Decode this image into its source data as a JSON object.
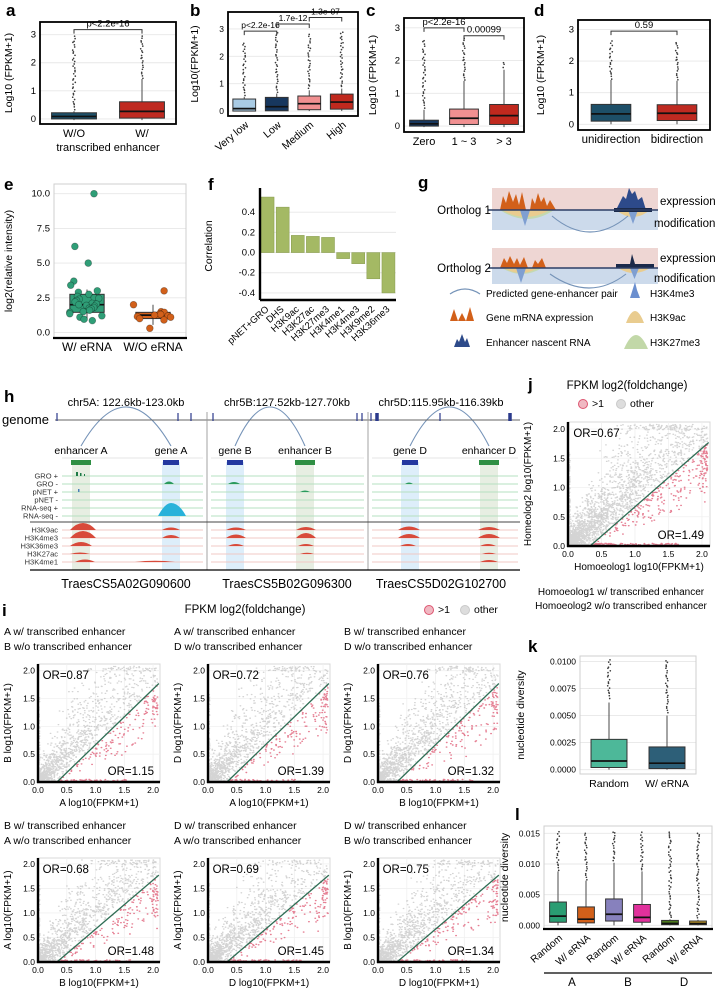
{
  "panels": {
    "a": {
      "label": "a"
    },
    "b": {
      "label": "b"
    },
    "c": {
      "label": "c"
    },
    "d": {
      "label": "d"
    },
    "e": {
      "label": "e"
    },
    "f": {
      "label": "f"
    },
    "g": {
      "label": "g",
      "rows": [
        {
          "name": "Ortholog 1",
          "right_top": "expression",
          "right_bottom": "modification"
        },
        {
          "name": "Ortholog 2",
          "right_top": "expression",
          "right_bottom": "modification"
        }
      ],
      "legend_left": [
        "Predicted gene-enhancer pair",
        "Gene mRNA expression",
        "Enhancer nascent RNA"
      ],
      "legend_right": [
        "H3K4me3",
        "H3K9ac",
        "H3K27me3"
      ],
      "colors": {
        "band_exp": "#eed6d3",
        "band_mod": "#ccdaeb",
        "mrna": "#d2601a",
        "nascent": "#2d4a8a",
        "h3k4me3": "#7f9fd1",
        "h3k9ac": "#e9cc8f",
        "h3k27me3": "#c2d8a8",
        "arc": "#7593b8"
      }
    },
    "h": {
      "label": "h",
      "genome_label": "genome",
      "regions": [
        {
          "title": "chr5A: 122.6kb-123.0kb",
          "gene_id": "TraesCS5A02G090600",
          "features": [
            "enhancer A",
            "gene A"
          ]
        },
        {
          "title": "chr5B:127.52kb-127.70kb",
          "gene_id": "TraesCS5B02G096300",
          "features": [
            "gene B",
            "enhancer B"
          ]
        },
        {
          "title": "chr5D:115.95kb-116.39kb",
          "gene_id": "TraesCS5D02G102700",
          "features": [
            "gene D",
            "enhancer D"
          ]
        }
      ],
      "nascent_tracks": [
        "GRO +",
        "GRO -",
        "pNET +",
        "pNET -",
        "RNA-seq +",
        "RNA-seq -"
      ],
      "chip_tracks": [
        "H3K9ac",
        "H3K4me3",
        "H3K36me3",
        "H3K27ac",
        "H3K4me1"
      ],
      "colors": {
        "enhancer": "#2f8f44",
        "gene": "#2438a0",
        "tick": "#2b3a8c",
        "nascent_line": "#b5e0c0",
        "chip_line": "#f0c8c4",
        "peak_green": "#1e7a46",
        "peak_cyan": "#29b2da",
        "peak_red": "#d84a3a",
        "hl_enh": "#e7eee2",
        "hl_gene": "#ddeefa"
      }
    },
    "i": {
      "label": "i",
      "header": "FPKM log2(foldchange)",
      "legend": [
        {
          "label": ">1",
          "color": "#dd5570"
        },
        {
          "label": "other",
          "color": "#c9c9c9"
        }
      ]
    },
    "j": {
      "label": "j",
      "header": "FPKM log2(foldchange)",
      "legend": [
        {
          "label": ">1",
          "color": "#dd5570"
        },
        {
          "label": "other",
          "color": "#c9c9c9"
        }
      ],
      "notes": [
        "Homoeolog1 w/ transcribed enhancer",
        "Homoeolog2 w/o transcribed enhancer"
      ]
    },
    "k": {
      "label": "k"
    },
    "l": {
      "label": "l"
    }
  },
  "chart_data": [
    {
      "id": "a",
      "el": "host-a",
      "type": "box",
      "title": "",
      "ylabel": "Log10 (FPKM+1)",
      "ylim": [
        -0.18,
        3.45
      ],
      "yticks": [
        0,
        1,
        2,
        3
      ],
      "ylabels": [
        "0",
        "1",
        "2",
        "3"
      ],
      "categories": [
        "W/O",
        "W/"
      ],
      "xlabel": "transcribed enhancer",
      "brackets": [
        {
          "from": 0,
          "to": 1,
          "y": 3.18,
          "label": "p<2.2e-16"
        }
      ],
      "boxes": [
        {
          "color": "#1d4f68",
          "wlo": -0.04,
          "q1": 0.0,
          "med": 0.09,
          "q3": 0.22,
          "whi": 0.28,
          "out": [
            0.34,
            2.92
          ]
        },
        {
          "color": "#bf2a21",
          "wlo": -0.04,
          "q1": 0.03,
          "med": 0.27,
          "q3": 0.61,
          "whi": 1.42,
          "out": [
            1.46,
            2.95
          ]
        }
      ]
    },
    {
      "id": "b",
      "el": "host-b",
      "type": "box",
      "ylabel": "Log10(FPKM+1)",
      "ylim": [
        -0.18,
        3.62
      ],
      "yticks": [
        0,
        1,
        2,
        3
      ],
      "ylabels": [
        "0",
        "1",
        "2",
        "3"
      ],
      "categories": [
        "Very low",
        "Low",
        "Medium",
        "High"
      ],
      "brackets": [
        {
          "from": 0,
          "to": 1,
          "y": 2.92,
          "label": "p<2.2e-16"
        },
        {
          "from": 1,
          "to": 2,
          "y": 3.18,
          "label": "1.7e-12"
        },
        {
          "from": 2,
          "to": 3,
          "y": 3.42,
          "label": "1.3e-07"
        }
      ],
      "boxes": [
        {
          "color": "#a9cbe4",
          "wlo": 0,
          "q1": 0.0,
          "med": 0.09,
          "q3": 0.44,
          "whi": 0.52,
          "out": [
            0.58,
            2.5
          ]
        },
        {
          "color": "#17375e",
          "wlo": 0,
          "q1": 0.01,
          "med": 0.16,
          "q3": 0.5,
          "whi": 0.64,
          "out": [
            0.7,
            2.85
          ]
        },
        {
          "color": "#f19091",
          "wlo": 0,
          "q1": 0.05,
          "med": 0.27,
          "q3": 0.55,
          "whi": 0.76,
          "out": [
            0.82,
            2.8
          ]
        },
        {
          "color": "#c0291e",
          "wlo": 0,
          "q1": 0.07,
          "med": 0.33,
          "q3": 0.62,
          "whi": 0.82,
          "out": [
            0.88,
            2.9
          ]
        }
      ]
    },
    {
      "id": "c",
      "el": "host-c",
      "type": "box",
      "ylabel": "Log10 (FPKM+1)",
      "ylim": [
        -0.18,
        3.3
      ],
      "yticks": [
        0,
        1,
        2,
        3
      ],
      "ylabels": [
        "0",
        "1",
        "2",
        "3"
      ],
      "categories": [
        "Zero",
        "1 ~ 3",
        "> 3"
      ],
      "brackets": [
        {
          "from": 0,
          "to": 1,
          "y": 3.0,
          "label": "p<2.2e-16"
        },
        {
          "from": 1,
          "to": 2,
          "y": 2.76,
          "label": "0.00099"
        }
      ],
      "boxes": [
        {
          "color": "#17375e",
          "wlo": -0.03,
          "q1": 0.0,
          "med": 0.07,
          "q3": 0.18,
          "whi": 0.5,
          "out": [
            0.56,
            2.62
          ]
        },
        {
          "color": "#f19091",
          "wlo": -0.03,
          "q1": 0.05,
          "med": 0.24,
          "q3": 0.52,
          "whi": 1.38,
          "out": [
            1.42,
            2.68
          ]
        },
        {
          "color": "#c0291e",
          "wlo": -0.03,
          "q1": 0.05,
          "med": 0.32,
          "q3": 0.66,
          "whi": 1.72,
          "out": [
            1.78,
            1.95
          ]
        }
      ]
    },
    {
      "id": "d",
      "el": "host-d",
      "type": "box",
      "ylabel": "Log10 (FPKM+1)",
      "ylim": [
        -0.18,
        3.3
      ],
      "yticks": [
        0,
        1,
        2,
        3
      ],
      "ylabels": [
        "0",
        "1",
        "2",
        "3"
      ],
      "categories": [
        "unidirection",
        "bidirection"
      ],
      "brackets": [
        {
          "from": 0,
          "to": 1,
          "y": 2.95,
          "label": "0.59"
        }
      ],
      "boxes": [
        {
          "color": "#1d4f68",
          "wlo": 0,
          "q1": 0.1,
          "med": 0.33,
          "q3": 0.63,
          "whi": 1.4,
          "out": [
            1.44,
            2.62
          ]
        },
        {
          "color": "#bf2a21",
          "wlo": 0,
          "q1": 0.12,
          "med": 0.35,
          "q3": 0.62,
          "whi": 1.38,
          "out": [
            1.42,
            2.6
          ]
        }
      ]
    },
    {
      "id": "e",
      "el": "host-e",
      "type": "box",
      "ylabel": "log2(relative intensity)",
      "ylim": [
        -0.4,
        10.7
      ],
      "yticks": [
        0,
        2.5,
        5,
        7.5,
        10
      ],
      "ylabels": [
        "0.0",
        "2.5",
        "5.0",
        "7.5",
        "10.0"
      ],
      "categories": [
        "W/ eRNA",
        "W/O eRNA"
      ],
      "boxes": [
        {
          "color": "#2f9e77",
          "wlo": 0.85,
          "q1": 1.45,
          "med": 2.0,
          "q3": 2.75,
          "whi": 3.1,
          "pts": [
            10,
            6.2,
            5,
            3.7,
            3.4,
            3.0,
            2.9,
            2.75,
            2.6,
            2.5,
            2.45,
            2.4,
            2.3,
            2.2,
            2.1,
            2.05,
            2.0,
            1.95,
            1.9,
            1.8,
            1.75,
            1.7,
            1.6,
            1.5,
            1.45,
            1.35,
            1.2,
            1.1,
            0.95,
            0.85
          ]
        },
        {
          "color": "#d2601a",
          "wlo": 0.55,
          "q1": 1.0,
          "med": 1.25,
          "q3": 1.45,
          "whi": 2.0,
          "pts": [
            3.0,
            2.0,
            1.5,
            1.45,
            1.35,
            1.3,
            1.25,
            1.2,
            1.15,
            1.1,
            1.0,
            0.9,
            0.3
          ]
        }
      ]
    },
    {
      "id": "f",
      "el": "host-f",
      "type": "bar",
      "color": "#a4b964",
      "ylabel": "Correlation",
      "ylim": [
        -0.47,
        0.6
      ],
      "yticks": [
        -0.4,
        -0.2,
        0,
        0.2,
        0.4
      ],
      "ylabels": [
        "-0.4",
        "-0.2",
        "0.0",
        "0.2",
        "0.4"
      ],
      "categories": [
        "pNET+GRO",
        "DHS",
        "H3K9ac",
        "H3K27ac",
        "H3K27me3",
        "H3K4me1",
        "H3K4me3",
        "H3K9me2",
        "H3K36me3"
      ],
      "values": [
        0.55,
        0.45,
        0.17,
        0.16,
        0.15,
        -0.06,
        -0.11,
        -0.26,
        -0.4
      ]
    },
    {
      "id": "i1",
      "el": "host-i1",
      "type": "scatter",
      "seed": 11,
      "n": 1400,
      "subtitle": [
        "A w/ transcribed enhancer",
        "B w/o transcribed enhancer"
      ],
      "or_top": "OR=0.87",
      "or_bottom": "OR=1.15",
      "xlabel": "A log10(FPKM+1)",
      "ylabel": "B log10(FPKM+1)",
      "ticks": [
        0,
        0.5,
        1,
        1.5,
        2
      ],
      "tlabels": [
        "0.0",
        "0.5",
        "1.0",
        "1.5",
        "2.0"
      ],
      "line": 0.33
    },
    {
      "id": "i2",
      "el": "host-i2",
      "type": "scatter",
      "seed": 23,
      "n": 1400,
      "subtitle": [
        "A w/ transcribed enhancer",
        "D w/o transcribed enhancer"
      ],
      "or_top": "OR=0.72",
      "or_bottom": "OR=1.39",
      "xlabel": "A log10(FPKM+1)",
      "ylabel": "D log10(FPKM+1)",
      "ticks": [
        0,
        0.5,
        1,
        1.5,
        2
      ],
      "tlabels": [
        "0.0",
        "0.5",
        "1.0",
        "1.5",
        "2.0"
      ],
      "line": 0.33
    },
    {
      "id": "i3",
      "el": "host-i3",
      "type": "scatter",
      "seed": 37,
      "n": 1400,
      "subtitle": [
        "B w/ transcribed enhancer",
        "D w/o transcribed enhancer"
      ],
      "or_top": "OR=0.76",
      "or_bottom": "OR=1.32",
      "xlabel": "B log10(FPKM+1)",
      "ylabel": "D log10(FPKM+1)",
      "ticks": [
        0,
        0.5,
        1,
        1.5,
        2
      ],
      "tlabels": [
        "0.0",
        "0.5",
        "1.0",
        "1.5",
        "2.0"
      ],
      "line": 0.33
    },
    {
      "id": "i4",
      "el": "host-i4",
      "type": "scatter",
      "seed": 51,
      "n": 1400,
      "subtitle": [
        "B w/ transcribed enhancer",
        "A w/o transcribed enhancer"
      ],
      "or_top": "OR=0.68",
      "or_bottom": "OR=1.48",
      "xlabel": "B log10(FPKM+1)",
      "ylabel": "A log10(FPKM+1)",
      "ticks": [
        0,
        0.5,
        1,
        1.5,
        2
      ],
      "tlabels": [
        "0.0",
        "0.5",
        "1.0",
        "1.5",
        "2.0"
      ],
      "line": 0.33
    },
    {
      "id": "i5",
      "el": "host-i5",
      "type": "scatter",
      "seed": 67,
      "n": 1400,
      "subtitle": [
        "D w/ transcribed enhancer",
        "A w/o transcribed enhancer"
      ],
      "or_top": "OR=0.69",
      "or_bottom": "OR=1.45",
      "xlabel": "D log10(FPKM+1)",
      "ylabel": "A log10(FPKM+1)",
      "ticks": [
        0,
        0.5,
        1,
        1.5,
        2
      ],
      "tlabels": [
        "0.0",
        "0.5",
        "1.0",
        "1.5",
        "2.0"
      ],
      "line": 0.33
    },
    {
      "id": "i6",
      "el": "host-i6",
      "type": "scatter",
      "seed": 83,
      "n": 1400,
      "subtitle": [
        "D w/ transcribed enhancer",
        "B w/o transcribed enhancer"
      ],
      "or_top": "OR=0.75",
      "or_bottom": "OR=1.34",
      "xlabel": "D log10(FPKM+1)",
      "ylabel": "B log10(FPKM+1)",
      "ticks": [
        0,
        0.5,
        1,
        1.5,
        2
      ],
      "tlabels": [
        "0.0",
        "0.5",
        "1.0",
        "1.5",
        "2.0"
      ],
      "line": 0.33
    },
    {
      "id": "j",
      "el": "host-j",
      "type": "scatter",
      "seed": 99,
      "n": 2600,
      "or_top": "OR=0.67",
      "or_bottom": "OR=1.49",
      "xlabel": "Homoeolog1 log10(FPKM+1)",
      "ylabel": "Homeolog2 log10(FPKM+1)",
      "ticks": [
        0,
        0.5,
        1,
        1.5,
        2
      ],
      "tlabels": [
        "0.0",
        "0.5",
        "1.0",
        "1.5",
        "2.0"
      ],
      "line": 0.33
    },
    {
      "id": "k",
      "el": "host-k",
      "type": "box",
      "ylabel": "nucleotide diversity",
      "ylim": [
        -0.0004,
        0.0105
      ],
      "yticks": [
        0,
        0.0025,
        0.005,
        0.0075,
        0.01
      ],
      "ylabels": [
        "0.0000",
        "0.0025",
        "0.0050",
        "0.0075",
        "0.0100"
      ],
      "categories": [
        "Random",
        "W/ eRNA"
      ],
      "boxes": [
        {
          "color": "#4db899",
          "wlo": 0,
          "q1": 0.0002,
          "med": 0.0008,
          "q3": 0.0028,
          "whi": 0.0062,
          "out": [
            0.0066,
            0.0101
          ]
        },
        {
          "color": "#2d5f78",
          "wlo": 0,
          "q1": 0.0001,
          "med": 0.0006,
          "q3": 0.0021,
          "whi": 0.005,
          "out": [
            0.0053,
            0.0101
          ]
        }
      ]
    },
    {
      "id": "l",
      "el": "host-l",
      "type": "box",
      "ylabel": "nucleotide diversity",
      "ylim": [
        -0.0006,
        0.0162
      ],
      "yticks": [
        0,
        0.005,
        0.01,
        0.015
      ],
      "ylabels": [
        "0.000",
        "0.005",
        "0.010",
        "0.015"
      ],
      "categories": [
        "Random",
        "W/ eRNA",
        "Random",
        "W/ eRNA",
        "Random",
        "W/ eRNA"
      ],
      "group_labels": [
        "A",
        "B",
        "D"
      ],
      "boxes": [
        {
          "color": "#2a9d72",
          "wlo": 0,
          "q1": 0.0005,
          "med": 0.0015,
          "q3": 0.0038,
          "whi": 0.0088,
          "out": [
            0.009,
            0.0152
          ]
        },
        {
          "color": "#d2601a",
          "wlo": 0,
          "q1": 0.0004,
          "med": 0.001,
          "q3": 0.003,
          "whi": 0.0073,
          "out": [
            0.0075,
            0.015
          ]
        },
        {
          "color": "#8781bd",
          "wlo": 0,
          "q1": 0.0007,
          "med": 0.0018,
          "q3": 0.0043,
          "whi": 0.0102,
          "out": [
            0.0105,
            0.0153
          ]
        },
        {
          "color": "#e0319c",
          "wlo": 0,
          "q1": 0.0005,
          "med": 0.0013,
          "q3": 0.0034,
          "whi": 0.0088,
          "out": [
            0.009,
            0.0151
          ]
        },
        {
          "color": "#4c7a1d",
          "wlo": 0,
          "q1": 0.0001,
          "med": 0.0003,
          "q3": 0.0008,
          "whi": 0.001,
          "out": [
            0.0012,
            0.0153
          ]
        },
        {
          "color": "#d4a629",
          "wlo": 0,
          "q1": 0.0001,
          "med": 0.0003,
          "q3": 0.0007,
          "whi": 0.0009,
          "out": [
            0.0012,
            0.0151
          ]
        }
      ]
    }
  ]
}
